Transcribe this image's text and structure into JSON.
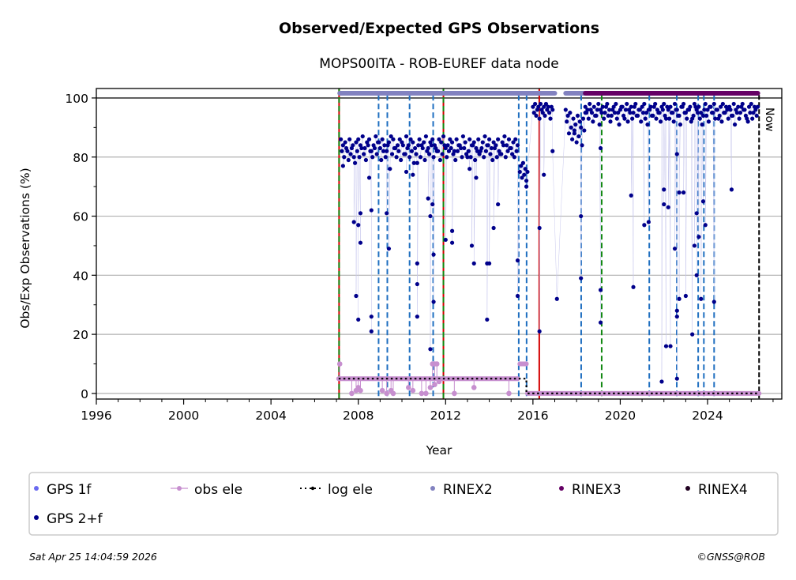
{
  "chart_data": {
    "type": "scatter",
    "title": "Observed/Expected GPS Observations",
    "subtitle": "MOPS00ITA - ROB-EUREF data node",
    "xlabel": "Year",
    "ylabel": "Obs/Exp Observations (%)",
    "xlim": [
      1996,
      2027.4
    ],
    "ylim": [
      -1.9,
      103.2
    ],
    "x_ticks": [
      "1996",
      "2000",
      "2004",
      "2008",
      "2012",
      "2016",
      "2020",
      "2024"
    ],
    "y_ticks": [
      "0",
      "20",
      "40",
      "60",
      "80",
      "100"
    ],
    "grid": "horizontal",
    "now_label": "Now",
    "now_year": 2026.36,
    "colors": {
      "gps1f": "#6a6af0",
      "gps2f": "#00008b",
      "obs_ele": "#c78fcf",
      "log_ele": "#000000",
      "rinex2": "#8282c0",
      "rinex3": "#650065",
      "rinex4": "#200020",
      "red_event": "#d40000",
      "blue_event": "#1f6fc0",
      "green_event": "#118811"
    },
    "legend": {
      "placement": "below",
      "items": [
        {
          "key": "gps1f",
          "label": "GPS 1f",
          "marker": "dot"
        },
        {
          "key": "obs_ele",
          "label": "obs ele",
          "marker": "line-dot"
        },
        {
          "key": "log_ele",
          "label": "log ele",
          "marker": "dotted"
        },
        {
          "key": "rinex2",
          "label": "RINEX2",
          "marker": "dot"
        },
        {
          "key": "rinex3",
          "label": "RINEX3",
          "marker": "dot"
        },
        {
          "key": "rinex4",
          "label": "RINEX4",
          "marker": "dot"
        },
        {
          "key": "gps2f",
          "label": "GPS 2+f",
          "marker": "dot"
        }
      ]
    },
    "series": [
      {
        "name": "GPS 1f",
        "points": []
      },
      {
        "name": "GPS 2+f",
        "bands": [
          {
            "x_start": 2007.2,
            "x_step": 0.1,
            "values": [
              86,
              84,
              85,
              82,
              86,
              83,
              80,
              85,
              86,
              84,
              87,
              83,
              85,
              86,
              82,
              84,
              87,
              85,
              83,
              86,
              84,
              82,
              85,
              87,
              86,
              83,
              84,
              86,
              85,
              81,
              87,
              84,
              86,
              85,
              83,
              78,
              86,
              84,
              85,
              87,
              83,
              85,
              86,
              84,
              82,
              86,
              85,
              87,
              83,
              84,
              86,
              85,
              82,
              86,
              84,
              83,
              87,
              85,
              80,
              86,
              84,
              85,
              83,
              86,
              82,
              85,
              87,
              84,
              86,
              83,
              85,
              84,
              86,
              81,
              85,
              87,
              84,
              86,
              83,
              85,
              86,
              84
            ]
          },
          {
            "x_start": 2007.25,
            "x_step": 0.1,
            "values": [
              82,
              80,
              83,
              79,
              81,
              84,
              78,
              82,
              80,
              83,
              81,
              79,
              84,
              82,
              80,
              83,
              81,
              85,
              79,
              82,
              80,
              84,
              76,
              81,
              83,
              80,
              82,
              79,
              84,
              81,
              83,
              80,
              82,
              78,
              81,
              84,
              80,
              83,
              79,
              82,
              81,
              84,
              80,
              83,
              82,
              79,
              81,
              84,
              80,
              82,
              83,
              81,
              79,
              82,
              84,
              80,
              83,
              81,
              82,
              80,
              84,
              79,
              82,
              81,
              83,
              80,
              82,
              84,
              81,
              79,
              83,
              80,
              82,
              81,
              84,
              80,
              82,
              83,
              81,
              80,
              82
            ]
          },
          {
            "x_start": 2015.4,
            "x_step": 0.05,
            "values": [
              75,
              77,
              73,
              78,
              74,
              76,
              72,
              75
            ]
          },
          {
            "x_start": 2016.0,
            "x_step": 0.05,
            "values": [
              97,
              95,
              98,
              94,
              96,
              97,
              93,
              98,
              96,
              95,
              97,
              94,
              98,
              96,
              97,
              95,
              93,
              97,
              96
            ]
          },
          {
            "x_start": 2017.5,
            "x_step": 0.05,
            "values": [
              96,
              92,
              94,
              88,
              95,
              90,
              86,
              93,
              89,
              91,
              85,
              94,
              87,
              92,
              90,
              84,
              93,
              89,
              95
            ]
          },
          {
            "x_start": 2018.4,
            "x_step": 0.1,
            "values": [
              97,
              96,
              98,
              95,
              97,
              94,
              98,
              96,
              97,
              95,
              98,
              96,
              94,
              97,
              98,
              95,
              96,
              97,
              93,
              98,
              96,
              97,
              95,
              98,
              94,
              96,
              97,
              98,
              95,
              96,
              97,
              94,
              98,
              96,
              95,
              97,
              98,
              93,
              96,
              97,
              95,
              98,
              96,
              94,
              97,
              98,
              95,
              96,
              97,
              93,
              98,
              96,
              97,
              95,
              94,
              98,
              96,
              97,
              95,
              98,
              96,
              93,
              97,
              98,
              95,
              96,
              97,
              94,
              98,
              96,
              97,
              95,
              98,
              96,
              93,
              97,
              98,
              95,
              96,
              97
            ]
          },
          {
            "x_start": 2018.45,
            "x_step": 0.1,
            "values": [
              95,
              93,
              96,
              92,
              94,
              96,
              91,
              95,
              93,
              97,
              94,
              92,
              96,
              95,
              93,
              91,
              97,
              94,
              96,
              92,
              95,
              93,
              97,
              94,
              96,
              92,
              95,
              93,
              91,
              96,
              94,
              97,
              93,
              95,
              92,
              96,
              94,
              97,
              93,
              95,
              92,
              96,
              94,
              91,
              97,
              95,
              93,
              96,
              92,
              94,
              97,
              95,
              93,
              91,
              96,
              94,
              92,
              97,
              95,
              93,
              96,
              94,
              92,
              95,
              97,
              93,
              96,
              94,
              91,
              95,
              93,
              97,
              96,
              94,
              92,
              95,
              93,
              97,
              94
            ]
          }
        ],
        "outliers": [
          [
            2007.3,
            77
          ],
          [
            2007.8,
            58
          ],
          [
            2007.9,
            33
          ],
          [
            2008.0,
            25
          ],
          [
            2008.0,
            57
          ],
          [
            2008.1,
            61
          ],
          [
            2008.1,
            51
          ],
          [
            2008.5,
            73
          ],
          [
            2008.6,
            62
          ],
          [
            2008.6,
            26
          ],
          [
            2008.6,
            21
          ],
          [
            2009.3,
            61
          ],
          [
            2009.4,
            49
          ],
          [
            2010.2,
            75
          ],
          [
            2010.5,
            74
          ],
          [
            2010.7,
            44
          ],
          [
            2010.7,
            37
          ],
          [
            2010.7,
            26
          ],
          [
            2011.2,
            66
          ],
          [
            2011.3,
            60
          ],
          [
            2011.3,
            15
          ],
          [
            2011.4,
            64
          ],
          [
            2011.45,
            47
          ],
          [
            2011.45,
            31
          ],
          [
            2012.0,
            52
          ],
          [
            2012.3,
            55
          ],
          [
            2012.3,
            51
          ],
          [
            2013.1,
            76
          ],
          [
            2013.2,
            50
          ],
          [
            2013.3,
            44
          ],
          [
            2013.4,
            73
          ],
          [
            2013.9,
            44
          ],
          [
            2013.9,
            25
          ],
          [
            2014.0,
            44
          ],
          [
            2014.2,
            56
          ],
          [
            2014.4,
            64
          ],
          [
            2015.3,
            45
          ],
          [
            2015.3,
            33
          ],
          [
            2015.7,
            70
          ],
          [
            2016.3,
            56
          ],
          [
            2016.3,
            21
          ],
          [
            2016.5,
            74
          ],
          [
            2016.9,
            82
          ],
          [
            2017.1,
            32
          ],
          [
            2017.9,
            88
          ],
          [
            2018.2,
            60
          ],
          [
            2018.2,
            39
          ],
          [
            2019.1,
            35
          ],
          [
            2019.1,
            24
          ],
          [
            2019.1,
            83
          ],
          [
            2020.5,
            67
          ],
          [
            2020.6,
            36
          ],
          [
            2021.1,
            57
          ],
          [
            2021.3,
            58
          ],
          [
            2021.9,
            4
          ],
          [
            2022.0,
            69
          ],
          [
            2022.0,
            64
          ],
          [
            2022.1,
            16
          ],
          [
            2022.3,
            16
          ],
          [
            2022.2,
            63
          ],
          [
            2022.5,
            49
          ],
          [
            2022.6,
            26
          ],
          [
            2022.6,
            28
          ],
          [
            2022.6,
            5
          ],
          [
            2022.7,
            32
          ],
          [
            2022.6,
            81
          ],
          [
            2022.7,
            68
          ],
          [
            2022.9,
            68
          ],
          [
            2023.0,
            33
          ],
          [
            2023.3,
            20
          ],
          [
            2023.4,
            50
          ],
          [
            2023.5,
            61
          ],
          [
            2023.5,
            40
          ],
          [
            2023.6,
            53
          ],
          [
            2023.7,
            32
          ],
          [
            2023.8,
            65
          ],
          [
            2023.9,
            57
          ],
          [
            2024.3,
            31
          ],
          [
            2025.1,
            69
          ]
        ]
      },
      {
        "name": "obs ele",
        "level_segments": [
          [
            2007.1,
            2015.3,
            5
          ],
          [
            2015.4,
            2015.7,
            10
          ],
          [
            2015.75,
            2026.36,
            0
          ]
        ],
        "drops": [
          [
            2007.15,
            10
          ],
          [
            2007.7,
            0
          ],
          [
            2007.9,
            1
          ],
          [
            2008.0,
            2
          ],
          [
            2008.1,
            1
          ],
          [
            2009.1,
            1
          ],
          [
            2009.3,
            0
          ],
          [
            2009.5,
            1
          ],
          [
            2009.6,
            0
          ],
          [
            2010.3,
            2
          ],
          [
            2010.5,
            1
          ],
          [
            2010.9,
            0
          ],
          [
            2011.1,
            0
          ],
          [
            2011.3,
            2
          ],
          [
            2011.4,
            10
          ],
          [
            2011.5,
            10
          ],
          [
            2011.6,
            10
          ],
          [
            2011.5,
            3
          ],
          [
            2011.7,
            4
          ],
          [
            2012.4,
            0
          ],
          [
            2013.3,
            2
          ],
          [
            2014.9,
            0
          ]
        ]
      },
      {
        "name": "log ele",
        "steps": [
          [
            2007.1,
            5
          ],
          [
            2015.7,
            5
          ],
          [
            2015.7,
            0
          ],
          [
            2026.36,
            0
          ]
        ]
      },
      {
        "name": "RINEX2",
        "level": 101.6,
        "ranges": [
          [
            2007.15,
            2017.0
          ],
          [
            2017.5,
            2018.4
          ]
        ]
      },
      {
        "name": "RINEX3",
        "level": 101.6,
        "ranges": [
          [
            2018.4,
            2026.3
          ]
        ]
      },
      {
        "name": "RINEX4",
        "level": 101.6,
        "ranges": []
      }
    ],
    "event_lines": [
      {
        "year": 2007.12,
        "kind": "red-green"
      },
      {
        "year": 2011.9,
        "kind": "red-green"
      },
      {
        "year": 2016.29,
        "kind": "red"
      },
      {
        "year": 2008.93,
        "kind": "blue"
      },
      {
        "year": 2009.33,
        "kind": "blue"
      },
      {
        "year": 2010.35,
        "kind": "blue"
      },
      {
        "year": 2011.43,
        "kind": "blue"
      },
      {
        "year": 2015.35,
        "kind": "blue"
      },
      {
        "year": 2015.71,
        "kind": "blue"
      },
      {
        "year": 2018.21,
        "kind": "blue"
      },
      {
        "year": 2021.33,
        "kind": "blue"
      },
      {
        "year": 2022.59,
        "kind": "blue"
      },
      {
        "year": 2023.57,
        "kind": "blue"
      },
      {
        "year": 2023.83,
        "kind": "blue"
      },
      {
        "year": 2024.3,
        "kind": "blue"
      },
      {
        "year": 2019.15,
        "kind": "green"
      }
    ]
  },
  "footer": {
    "timestamp": "Sat Apr 25 14:04:59 2026",
    "copyright": "©GNSS@ROB"
  }
}
